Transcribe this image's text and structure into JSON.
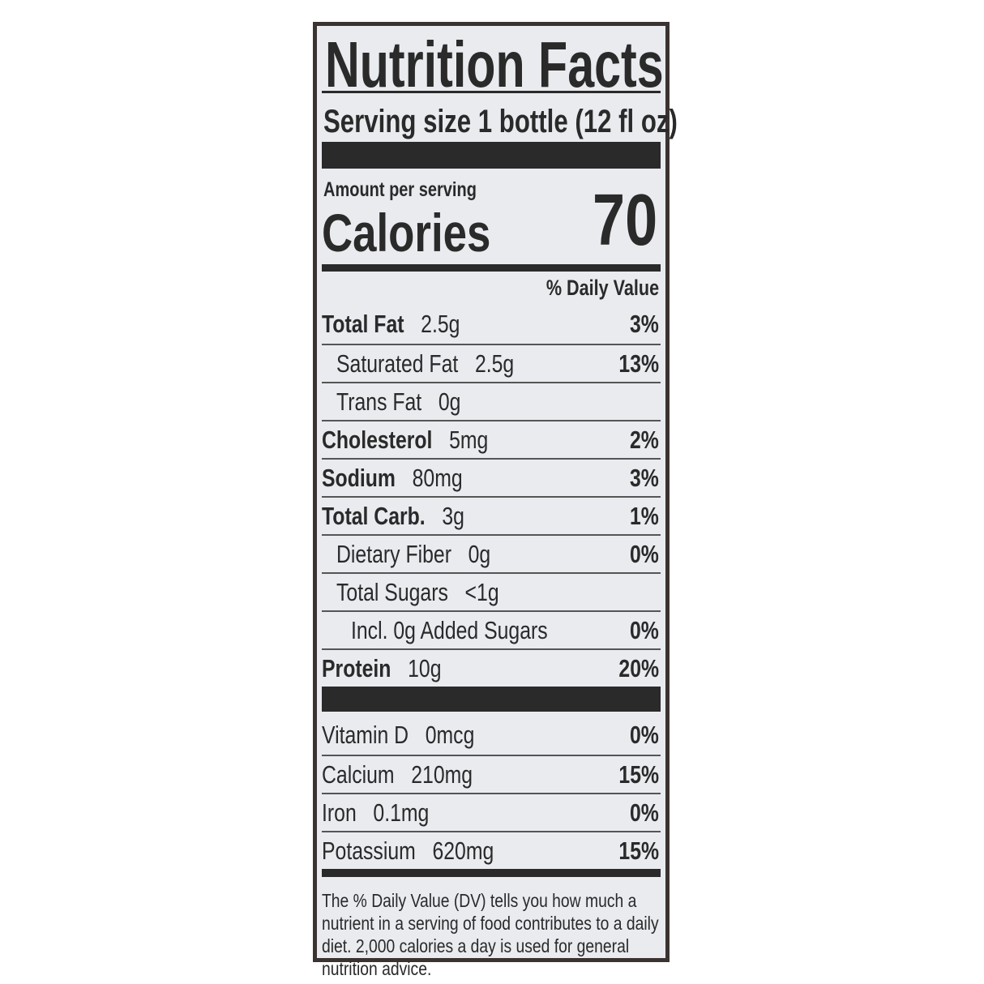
{
  "title": "Nutrition Facts",
  "serving_size": "Serving size 1 bottle (12 fl oz)",
  "amount_per_serving": "Amount per serving",
  "calories_label": "Calories",
  "calories_value": "70",
  "daily_value_header": "% Daily Value",
  "nutrients": [
    {
      "name": "Total Fat",
      "amount": "2.5g",
      "dv": "3%",
      "bold": true,
      "indent": 0
    },
    {
      "name": "Saturated Fat",
      "amount": "2.5g",
      "dv": "13%",
      "bold": false,
      "indent": 1
    },
    {
      "name": "Trans Fat",
      "amount": "0g",
      "dv": "",
      "bold": false,
      "indent": 1
    },
    {
      "name": "Cholesterol",
      "amount": "5mg",
      "dv": "2%",
      "bold": true,
      "indent": 0
    },
    {
      "name": "Sodium",
      "amount": "80mg",
      "dv": "3%",
      "bold": true,
      "indent": 0
    },
    {
      "name": "Total Carb.",
      "amount": "3g",
      "dv": "1%",
      "bold": true,
      "indent": 0
    },
    {
      "name": "Dietary Fiber",
      "amount": "0g",
      "dv": "0%",
      "bold": false,
      "indent": 1
    },
    {
      "name": "Total Sugars",
      "amount": "<1g",
      "dv": "",
      "bold": false,
      "indent": 1
    },
    {
      "name": "Incl. 0g Added Sugars",
      "amount": "",
      "dv": "0%",
      "bold": false,
      "indent": 2
    },
    {
      "name": "Protein",
      "amount": "10g",
      "dv": "20%",
      "bold": true,
      "indent": 0
    }
  ],
  "vitamins": [
    {
      "name": "Vitamin D",
      "amount": "0mcg",
      "dv": "0%"
    },
    {
      "name": "Calcium",
      "amount": "210mg",
      "dv": "15%"
    },
    {
      "name": "Iron",
      "amount": "0.1mg",
      "dv": "0%"
    },
    {
      "name": "Potassium",
      "amount": "620mg",
      "dv": "15%"
    }
  ],
  "footnote": "The % Daily Value (DV) tells you how much a nutrient in a serving of food contributes to a daily diet. 2,000 calories a day is used for general nutrition advice."
}
